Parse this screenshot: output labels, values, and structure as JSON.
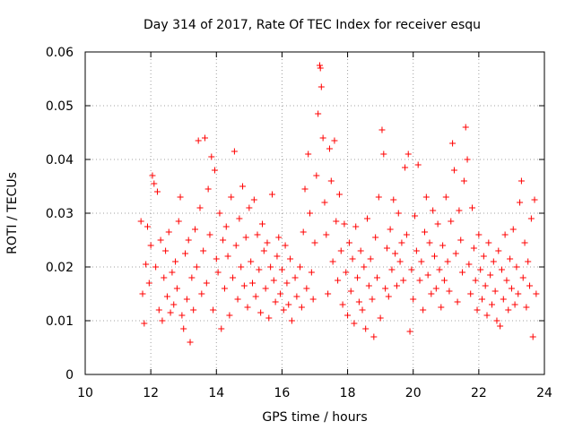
{
  "chart_data": {
    "type": "scatter",
    "title": "Day 314 of 2017, Rate Of TEC Index for receiver esqu",
    "xlabel": "GPS time / hours",
    "ylabel": "ROTI / TECUs",
    "xlim": [
      10,
      24
    ],
    "ylim": [
      0,
      0.06
    ],
    "xticks": [
      10,
      12,
      14,
      16,
      18,
      20,
      22,
      24
    ],
    "yticks": [
      0,
      0.01,
      0.02,
      0.03,
      0.04,
      0.05,
      0.06
    ],
    "xtick_labels": [
      "10",
      "12",
      "14",
      "16",
      "18",
      "20",
      "22",
      "24"
    ],
    "ytick_labels": [
      "0",
      "0.01",
      "0.02",
      "0.03",
      "0.04",
      "0.05",
      "0.06"
    ],
    "grid": true,
    "marker": "+",
    "color": "#ff0000",
    "series": [
      {
        "name": "ROTI",
        "points": [
          [
            11.7,
            0.0285
          ],
          [
            11.75,
            0.015
          ],
          [
            11.8,
            0.0095
          ],
          [
            11.85,
            0.0205
          ],
          [
            11.9,
            0.0275
          ],
          [
            11.95,
            0.017
          ],
          [
            12.0,
            0.024
          ],
          [
            12.05,
            0.037
          ],
          [
            12.1,
            0.0355
          ],
          [
            12.15,
            0.02
          ],
          [
            12.2,
            0.034
          ],
          [
            12.25,
            0.012
          ],
          [
            12.3,
            0.025
          ],
          [
            12.35,
            0.01
          ],
          [
            12.4,
            0.018
          ],
          [
            12.45,
            0.023
          ],
          [
            12.5,
            0.0145
          ],
          [
            12.55,
            0.0265
          ],
          [
            12.6,
            0.0115
          ],
          [
            12.65,
            0.019
          ],
          [
            12.7,
            0.013
          ],
          [
            12.75,
            0.021
          ],
          [
            12.8,
            0.016
          ],
          [
            12.85,
            0.0285
          ],
          [
            12.9,
            0.033
          ],
          [
            12.95,
            0.011
          ],
          [
            13.0,
            0.0085
          ],
          [
            13.05,
            0.0225
          ],
          [
            13.1,
            0.014
          ],
          [
            13.15,
            0.025
          ],
          [
            13.2,
            0.006
          ],
          [
            13.25,
            0.018
          ],
          [
            13.3,
            0.012
          ],
          [
            13.35,
            0.027
          ],
          [
            13.4,
            0.02
          ],
          [
            13.45,
            0.0435
          ],
          [
            13.5,
            0.031
          ],
          [
            13.55,
            0.015
          ],
          [
            13.6,
            0.023
          ],
          [
            13.65,
            0.044
          ],
          [
            13.7,
            0.017
          ],
          [
            13.75,
            0.0345
          ],
          [
            13.8,
            0.026
          ],
          [
            13.85,
            0.0405
          ],
          [
            13.9,
            0.012
          ],
          [
            13.95,
            0.038
          ],
          [
            14.0,
            0.0215
          ],
          [
            14.05,
            0.019
          ],
          [
            14.1,
            0.03
          ],
          [
            14.15,
            0.0085
          ],
          [
            14.2,
            0.025
          ],
          [
            14.25,
            0.016
          ],
          [
            14.3,
            0.0275
          ],
          [
            14.35,
            0.022
          ],
          [
            14.4,
            0.011
          ],
          [
            14.45,
            0.033
          ],
          [
            14.5,
            0.018
          ],
          [
            14.55,
            0.0415
          ],
          [
            14.6,
            0.024
          ],
          [
            14.65,
            0.014
          ],
          [
            14.7,
            0.029
          ],
          [
            14.75,
            0.02
          ],
          [
            14.8,
            0.035
          ],
          [
            14.85,
            0.0165
          ],
          [
            14.9,
            0.0255
          ],
          [
            14.95,
            0.0125
          ],
          [
            15.0,
            0.031
          ],
          [
            15.05,
            0.021
          ],
          [
            15.1,
            0.017
          ],
          [
            15.15,
            0.0325
          ],
          [
            15.2,
            0.0145
          ],
          [
            15.25,
            0.026
          ],
          [
            15.3,
            0.0195
          ],
          [
            15.35,
            0.0115
          ],
          [
            15.4,
            0.028
          ],
          [
            15.45,
            0.023
          ],
          [
            15.5,
            0.016
          ],
          [
            15.55,
            0.0245
          ],
          [
            15.6,
            0.0105
          ],
          [
            15.65,
            0.02
          ],
          [
            15.7,
            0.0335
          ],
          [
            15.75,
            0.0175
          ],
          [
            15.8,
            0.0135
          ],
          [
            15.85,
            0.022
          ],
          [
            15.9,
            0.0255
          ],
          [
            15.95,
            0.015
          ],
          [
            16.0,
            0.0195
          ],
          [
            16.05,
            0.012
          ],
          [
            16.1,
            0.024
          ],
          [
            16.15,
            0.017
          ],
          [
            16.2,
            0.013
          ],
          [
            16.25,
            0.0215
          ],
          [
            16.3,
            0.01
          ],
          [
            16.4,
            0.018
          ],
          [
            16.45,
            0.0145
          ],
          [
            16.55,
            0.02
          ],
          [
            16.6,
            0.0125
          ],
          [
            16.65,
            0.0265
          ],
          [
            16.7,
            0.0345
          ],
          [
            16.75,
            0.016
          ],
          [
            16.8,
            0.041
          ],
          [
            16.85,
            0.03
          ],
          [
            16.9,
            0.019
          ],
          [
            16.95,
            0.014
          ],
          [
            17.0,
            0.0245
          ],
          [
            17.05,
            0.037
          ],
          [
            17.1,
            0.0485
          ],
          [
            17.15,
            0.0575
          ],
          [
            17.17,
            0.057
          ],
          [
            17.2,
            0.0535
          ],
          [
            17.25,
            0.044
          ],
          [
            17.3,
            0.032
          ],
          [
            17.35,
            0.026
          ],
          [
            17.4,
            0.015
          ],
          [
            17.45,
            0.042
          ],
          [
            17.5,
            0.036
          ],
          [
            17.55,
            0.021
          ],
          [
            17.6,
            0.0435
          ],
          [
            17.65,
            0.0285
          ],
          [
            17.7,
            0.0175
          ],
          [
            17.75,
            0.0335
          ],
          [
            17.8,
            0.023
          ],
          [
            17.85,
            0.013
          ],
          [
            17.9,
            0.028
          ],
          [
            17.95,
            0.019
          ],
          [
            18.0,
            0.011
          ],
          [
            18.05,
            0.0245
          ],
          [
            18.1,
            0.0155
          ],
          [
            18.15,
            0.0215
          ],
          [
            18.2,
            0.0095
          ],
          [
            18.25,
            0.0275
          ],
          [
            18.3,
            0.018
          ],
          [
            18.35,
            0.0135
          ],
          [
            18.4,
            0.023
          ],
          [
            18.45,
            0.012
          ],
          [
            18.5,
            0.02
          ],
          [
            18.55,
            0.0085
          ],
          [
            18.6,
            0.029
          ],
          [
            18.65,
            0.0165
          ],
          [
            18.7,
            0.0215
          ],
          [
            18.75,
            0.014
          ],
          [
            18.8,
            0.007
          ],
          [
            18.85,
            0.0255
          ],
          [
            18.9,
            0.018
          ],
          [
            18.95,
            0.033
          ],
          [
            19.0,
            0.0105
          ],
          [
            19.05,
            0.0455
          ],
          [
            19.1,
            0.041
          ],
          [
            19.15,
            0.016
          ],
          [
            19.2,
            0.0235
          ],
          [
            19.25,
            0.0145
          ],
          [
            19.3,
            0.027
          ],
          [
            19.35,
            0.0195
          ],
          [
            19.4,
            0.0325
          ],
          [
            19.45,
            0.0225
          ],
          [
            19.5,
            0.0165
          ],
          [
            19.55,
            0.03
          ],
          [
            19.6,
            0.021
          ],
          [
            19.65,
            0.0245
          ],
          [
            19.7,
            0.0175
          ],
          [
            19.75,
            0.0385
          ],
          [
            19.8,
            0.026
          ],
          [
            19.85,
            0.041
          ],
          [
            19.9,
            0.008
          ],
          [
            19.95,
            0.0195
          ],
          [
            20.0,
            0.014
          ],
          [
            20.05,
            0.0295
          ],
          [
            20.1,
            0.023
          ],
          [
            20.15,
            0.039
          ],
          [
            20.2,
            0.0175
          ],
          [
            20.25,
            0.021
          ],
          [
            20.3,
            0.012
          ],
          [
            20.35,
            0.0265
          ],
          [
            20.4,
            0.033
          ],
          [
            20.45,
            0.0185
          ],
          [
            20.5,
            0.0245
          ],
          [
            20.55,
            0.015
          ],
          [
            20.6,
            0.0305
          ],
          [
            20.65,
            0.022
          ],
          [
            20.7,
            0.016
          ],
          [
            20.75,
            0.028
          ],
          [
            20.8,
            0.0195
          ],
          [
            20.85,
            0.0125
          ],
          [
            20.9,
            0.024
          ],
          [
            20.95,
            0.0175
          ],
          [
            21.0,
            0.033
          ],
          [
            21.05,
            0.021
          ],
          [
            21.1,
            0.0155
          ],
          [
            21.15,
            0.0285
          ],
          [
            21.2,
            0.043
          ],
          [
            21.25,
            0.038
          ],
          [
            21.3,
            0.0225
          ],
          [
            21.35,
            0.0135
          ],
          [
            21.4,
            0.0305
          ],
          [
            21.45,
            0.025
          ],
          [
            21.5,
            0.019
          ],
          [
            21.55,
            0.036
          ],
          [
            21.6,
            0.046
          ],
          [
            21.65,
            0.04
          ],
          [
            21.7,
            0.0205
          ],
          [
            21.75,
            0.015
          ],
          [
            21.8,
            0.031
          ],
          [
            21.85,
            0.0235
          ],
          [
            21.9,
            0.0175
          ],
          [
            21.95,
            0.012
          ],
          [
            22.0,
            0.026
          ],
          [
            22.05,
            0.0195
          ],
          [
            22.1,
            0.014
          ],
          [
            22.15,
            0.022
          ],
          [
            22.2,
            0.0165
          ],
          [
            22.25,
            0.011
          ],
          [
            22.3,
            0.0245
          ],
          [
            22.35,
            0.0185
          ],
          [
            22.4,
            0.013
          ],
          [
            22.45,
            0.021
          ],
          [
            22.5,
            0.0155
          ],
          [
            22.55,
            0.01
          ],
          [
            22.6,
            0.023
          ],
          [
            22.65,
            0.009
          ],
          [
            22.7,
            0.0195
          ],
          [
            22.75,
            0.014
          ],
          [
            22.8,
            0.026
          ],
          [
            22.85,
            0.0175
          ],
          [
            22.9,
            0.012
          ],
          [
            22.95,
            0.0215
          ],
          [
            23.0,
            0.016
          ],
          [
            23.05,
            0.027
          ],
          [
            23.1,
            0.013
          ],
          [
            23.15,
            0.02
          ],
          [
            23.2,
            0.015
          ],
          [
            23.25,
            0.032
          ],
          [
            23.3,
            0.036
          ],
          [
            23.35,
            0.018
          ],
          [
            23.4,
            0.0245
          ],
          [
            23.45,
            0.0125
          ],
          [
            23.5,
            0.021
          ],
          [
            23.55,
            0.0165
          ],
          [
            23.6,
            0.029
          ],
          [
            23.65,
            0.007
          ],
          [
            23.7,
            0.0325
          ],
          [
            23.75,
            0.015
          ]
        ]
      }
    ]
  }
}
